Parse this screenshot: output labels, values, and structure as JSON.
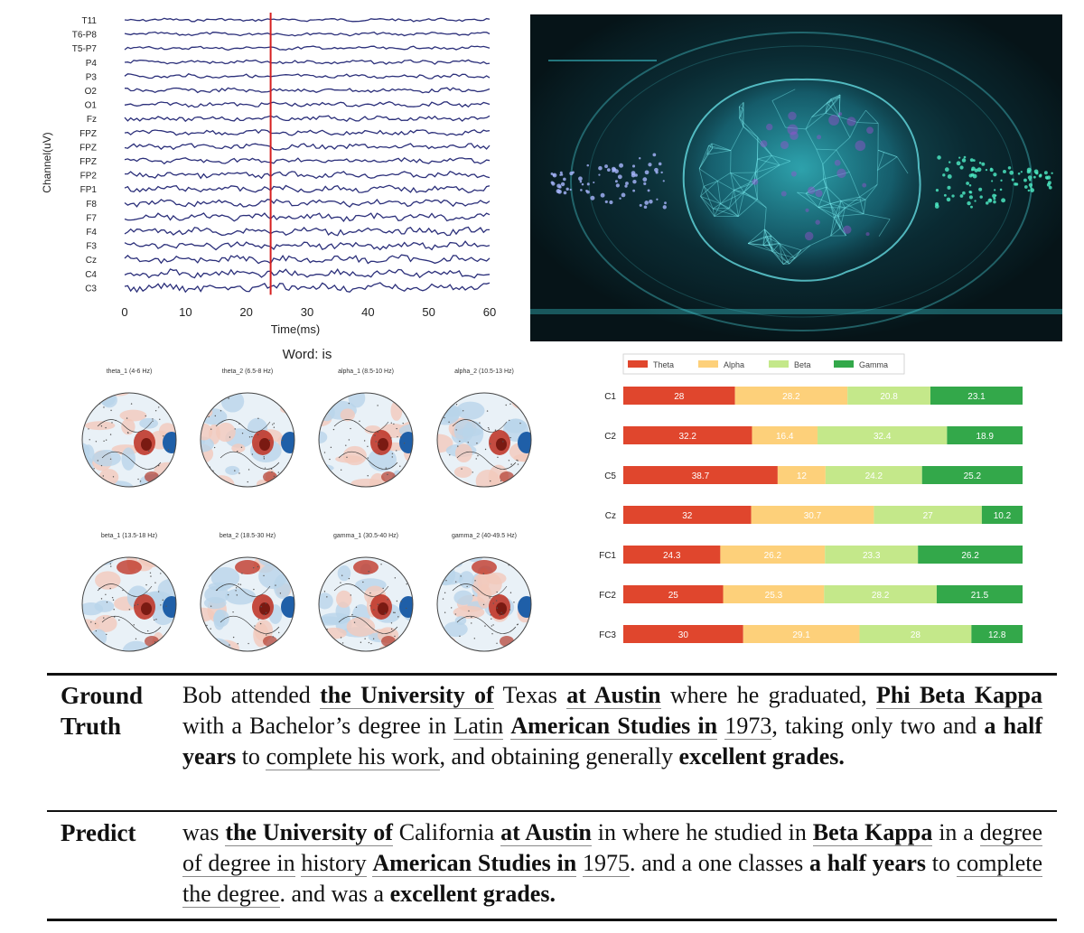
{
  "eeg_plot": {
    "ylabel": "Channel(uV)",
    "xlabel": "Time(ms)",
    "channels": [
      "T11",
      "T6-P8",
      "T5-P7",
      "P4",
      "P3",
      "O2",
      "O1",
      "Fz",
      "FPZ",
      "FPZ",
      "FPZ",
      "FP2",
      "FP1",
      "F8",
      "F7",
      "F4",
      "F3",
      "Cz",
      "C4",
      "C3"
    ],
    "xticks": [
      "0",
      "10",
      "20",
      "30",
      "40",
      "50",
      "60"
    ],
    "marker_time": 24,
    "trace_color": "#2b2f7a",
    "marker_color": "#d62020"
  },
  "brain_image": {
    "description_icon": "glowing-brain-network-image",
    "bg": "#061418",
    "accent": "#3fd6e0"
  },
  "topomaps": {
    "title": "Word: is",
    "labels": [
      "theta_1 (4-6 Hz)",
      "theta_2 (6.5-8 Hz)",
      "alpha_1 (8.5-10 Hz)",
      "alpha_2 (10.5-13 Hz)",
      "beta_1 (13.5-18 Hz)",
      "beta_2 (18.5-30 Hz)",
      "gamma_1 (30.5-40 Hz)",
      "gamma_2 (40-49.5 Hz)"
    ]
  },
  "chart_data": {
    "type": "bar",
    "orientation": "horizontal-stacked-percent",
    "categories": [
      "C1",
      "C2",
      "C5",
      "Cz",
      "FC1",
      "FC2",
      "FC3"
    ],
    "series": [
      {
        "name": "Theta",
        "color": "#e0462d",
        "values": [
          28,
          32.2,
          38.7,
          32,
          24.3,
          25,
          30
        ]
      },
      {
        "name": "Alpha",
        "color": "#fdd07a",
        "values": [
          28.2,
          16.4,
          12,
          30.7,
          26.2,
          25.3,
          29.1
        ]
      },
      {
        "name": "Beta",
        "color": "#c4e88a",
        "values": [
          20.8,
          32.4,
          24.2,
          27,
          23.3,
          28.2,
          28
        ]
      },
      {
        "name": "Gamma",
        "color": "#33a84a",
        "values": [
          23.1,
          18.9,
          25.2,
          10.2,
          26.2,
          21.5,
          12.8
        ]
      }
    ],
    "legend": "top-left",
    "xlim": [
      0,
      100
    ]
  },
  "table": {
    "rows": [
      {
        "label": "Ground Truth",
        "segments": [
          {
            "t": "Bob attended "
          },
          {
            "t": "the University of",
            "b": true,
            "u": true
          },
          {
            "t": " Texas "
          },
          {
            "t": "at Austin",
            "b": true,
            "u": true
          },
          {
            "t": " where he graduated, "
          },
          {
            "t": "Phi Beta Kappa",
            "b": true,
            "u": true
          },
          {
            "t": " with a Bachelor’s degree in "
          },
          {
            "t": "Latin",
            "u": true
          },
          {
            "t": " "
          },
          {
            "t": "American Studies in",
            "b": true,
            "u": true
          },
          {
            "t": " "
          },
          {
            "t": "1973",
            "u": true
          },
          {
            "t": ", taking only two and "
          },
          {
            "t": "a half years",
            "b": true
          },
          {
            "t": " to "
          },
          {
            "t": "complete his work",
            "u": true
          },
          {
            "t": ", and obtaining generally "
          },
          {
            "t": "excellent grades.",
            "b": true
          }
        ]
      },
      {
        "label": "Predict",
        "segments": [
          {
            "t": "was "
          },
          {
            "t": "the University of",
            "b": true,
            "u": true
          },
          {
            "t": " California "
          },
          {
            "t": "at Austin",
            "b": true,
            "u": true
          },
          {
            "t": " in where he studied in "
          },
          {
            "t": "Beta Kappa",
            "b": true,
            "u": true
          },
          {
            "t": " in a "
          },
          {
            "t": "degree of degree in",
            "u": true
          },
          {
            "t": " "
          },
          {
            "t": "history",
            "u": true
          },
          {
            "t": " "
          },
          {
            "t": "American Studies in",
            "b": true,
            "u": true
          },
          {
            "t": " "
          },
          {
            "t": "1975",
            "u": true
          },
          {
            "t": ". and a one classes "
          },
          {
            "t": "a half years",
            "b": true
          },
          {
            "t": " to "
          },
          {
            "t": "complete the degree",
            "u": true
          },
          {
            "t": ". and was a "
          },
          {
            "t": "excellent grades.",
            "b": true
          }
        ]
      }
    ]
  }
}
